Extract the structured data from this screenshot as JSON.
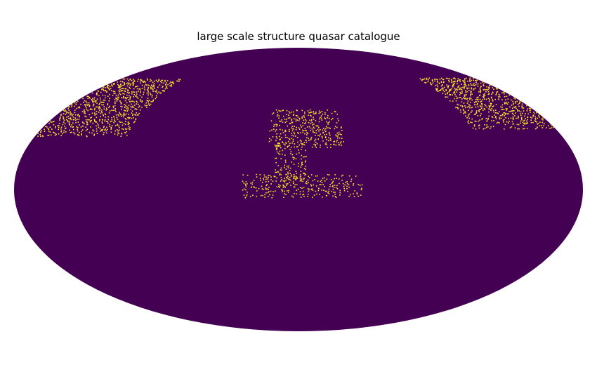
{
  "chart_data": {
    "type": "heatmap",
    "title": "large scale structure quasar catalogue",
    "projection": "mollweide",
    "colormap": {
      "empty": "#440154",
      "filled": "#fde725"
    },
    "value_range": [
      0,
      1
    ],
    "colorbar": false,
    "grid": false,
    "regions": [
      {
        "name": "left-high-patch",
        "lon_range": [
          118,
          180
        ],
        "lat_range": [
          28,
          62
        ],
        "density": 0.42
      },
      {
        "name": "right-high-patch",
        "lon_range": [
          -180,
          -122
        ],
        "lat_range": [
          32,
          62
        ],
        "density": 0.42
      },
      {
        "name": "central-upper-patch",
        "lon_range": [
          -30,
          20
        ],
        "lat_range": [
          22,
          42
        ],
        "density": 0.38
      },
      {
        "name": "central-stem",
        "lon_range": [
          -5,
          15
        ],
        "lat_range": [
          4,
          24
        ],
        "density": 0.3
      },
      {
        "name": "central-lower-band",
        "lon_range": [
          -40,
          35
        ],
        "lat_range": [
          -4,
          7
        ],
        "density": 0.36
      }
    ]
  }
}
